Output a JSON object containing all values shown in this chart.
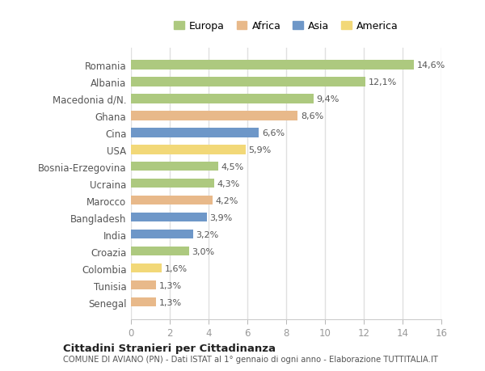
{
  "categories": [
    "Romania",
    "Albania",
    "Macedonia d/N.",
    "Ghana",
    "Cina",
    "USA",
    "Bosnia-Erzegovina",
    "Ucraina",
    "Marocco",
    "Bangladesh",
    "India",
    "Croazia",
    "Colombia",
    "Tunisia",
    "Senegal"
  ],
  "values": [
    14.6,
    12.1,
    9.4,
    8.6,
    6.6,
    5.9,
    4.5,
    4.3,
    4.2,
    3.9,
    3.2,
    3.0,
    1.6,
    1.3,
    1.3
  ],
  "labels": [
    "14,6%",
    "12,1%",
    "9,4%",
    "8,6%",
    "6,6%",
    "5,9%",
    "4,5%",
    "4,3%",
    "4,2%",
    "3,9%",
    "3,2%",
    "3,0%",
    "1,6%",
    "1,3%",
    "1,3%"
  ],
  "continents": [
    "Europa",
    "Europa",
    "Europa",
    "Africa",
    "Asia",
    "America",
    "Europa",
    "Europa",
    "Africa",
    "Asia",
    "Asia",
    "Europa",
    "America",
    "Africa",
    "Africa"
  ],
  "colors": {
    "Europa": "#adc97f",
    "Africa": "#e8b98a",
    "Asia": "#6e97c8",
    "America": "#f2d878"
  },
  "legend_order": [
    "Europa",
    "Africa",
    "Asia",
    "America"
  ],
  "title1": "Cittadini Stranieri per Cittadinanza",
  "title2": "COMUNE DI AVIANO (PN) - Dati ISTAT al 1° gennaio di ogni anno - Elaborazione TUTTITALIA.IT",
  "xlim": [
    0,
    16
  ],
  "xticks": [
    0,
    2,
    4,
    6,
    8,
    10,
    12,
    14,
    16
  ],
  "background_color": "#ffffff",
  "plot_bg_color": "#ffffff",
  "grid_color": "#e0e0e0",
  "bar_height": 0.55,
  "label_fontsize": 8.0,
  "ytick_fontsize": 8.5,
  "xtick_fontsize": 8.5
}
